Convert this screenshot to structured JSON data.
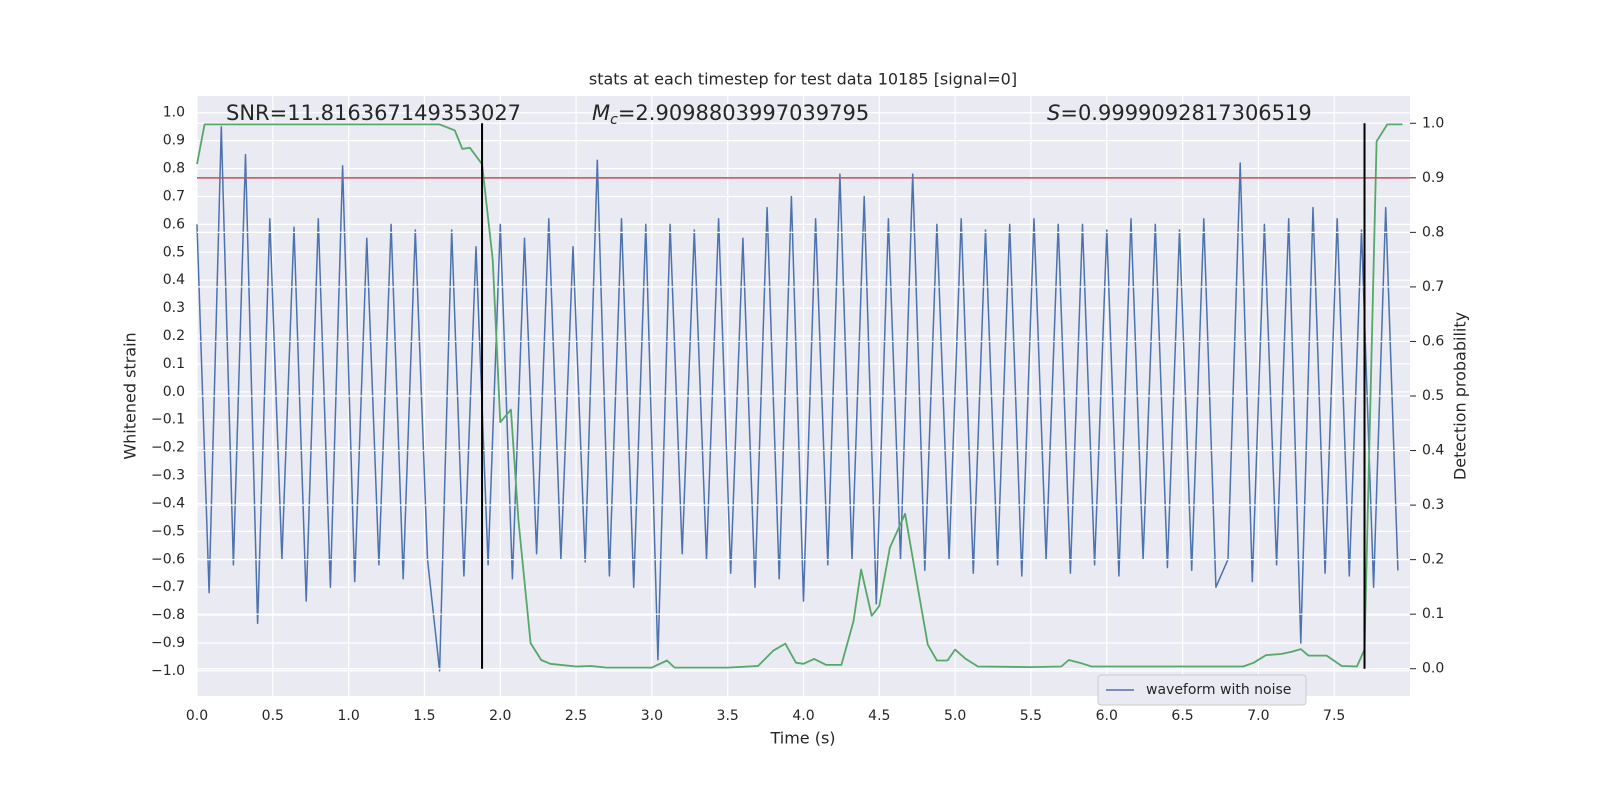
{
  "chart_data": {
    "type": "line",
    "title": "stats at each timestep for test data 10185 [signal=0]",
    "xlabel": "Time (s)",
    "ylabel": "Whitened strain",
    "y2label": "Detection probability",
    "annotations": [
      {
        "text": "SNR=11.816367149353027"
      },
      {
        "symbol": "M",
        "subscript": "c",
        "text": "=2.9098803997039795"
      },
      {
        "symbol": "S",
        "text": "=0.9999092817306519"
      }
    ],
    "xlim": [
      0,
      8.0
    ],
    "ylim": [
      -1.09,
      1.06
    ],
    "y2lim": [
      -0.05,
      1.05
    ],
    "xticks": [
      {
        "value": 0,
        "label": "0.0"
      },
      0.5,
      {
        "value": 1,
        "label": "1.0"
      },
      1.5,
      {
        "value": 2,
        "label": "2.0"
      },
      2.5,
      {
        "value": 3,
        "label": "3.0"
      },
      3.5,
      {
        "value": 4,
        "label": "4.0"
      },
      4.5,
      {
        "value": 5,
        "label": "5.0"
      },
      5.5,
      {
        "value": 6,
        "label": "6.0"
      },
      6.5,
      {
        "value": 7,
        "label": "7.0"
      },
      7.5
    ],
    "yticks": [
      {
        "value": -1,
        "label": "−1.0"
      },
      {
        "value": -0.9,
        "label": "−0.9"
      },
      {
        "value": -0.8,
        "label": "−0.8"
      },
      {
        "value": -0.7,
        "label": "−0.7"
      },
      {
        "value": -0.6,
        "label": "−0.6"
      },
      {
        "value": -0.5,
        "label": "−0.5"
      },
      {
        "value": -0.4,
        "label": "−0.4"
      },
      {
        "value": -0.3,
        "label": "−0.3"
      },
      {
        "value": -0.2,
        "label": "−0.2"
      },
      {
        "value": -0.1,
        "label": "−0.1"
      },
      {
        "value": 0,
        "label": "0.0"
      },
      0.1,
      0.2,
      0.3,
      0.4,
      0.5,
      0.6,
      0.7,
      0.8,
      0.9,
      {
        "value": 1,
        "label": "1.0"
      }
    ],
    "y2ticks": [
      {
        "value": 0,
        "label": "0.0"
      },
      0.1,
      0.2,
      0.3,
      0.4,
      0.5,
      0.6,
      0.7,
      0.8,
      0.9,
      {
        "value": 1,
        "label": "1.0"
      }
    ],
    "grid": true,
    "legend": "lower right",
    "series": [
      {
        "name": "waveform with noise",
        "color": "#4c72b0",
        "x": [
          0,
          0.08,
          0.16,
          0.24,
          0.32,
          0.4,
          0.48,
          0.56,
          0.64,
          0.72,
          0.8,
          0.88,
          0.96,
          1.04,
          1.12,
          1.2,
          1.28,
          1.36,
          1.44,
          1.52,
          1.6,
          1.68,
          1.76,
          1.84,
          1.92,
          2,
          2.08,
          2.16,
          2.24,
          2.32,
          2.4,
          2.48,
          2.56,
          2.64,
          2.72,
          2.8,
          2.88,
          2.96,
          3.04,
          3.12,
          3.2,
          3.28,
          3.36,
          3.44,
          3.52,
          3.6,
          3.68,
          3.76,
          3.84,
          3.92,
          4,
          4.08,
          4.16,
          4.24,
          4.32,
          4.4,
          4.48,
          4.56,
          4.64,
          4.72,
          4.8,
          4.88,
          4.96,
          5.04,
          5.12,
          5.2,
          5.28,
          5.36,
          5.44,
          5.52,
          5.6,
          5.68,
          5.76,
          5.84,
          5.92,
          6,
          6.08,
          6.16,
          6.24,
          6.32,
          6.4,
          6.48,
          6.56,
          6.64,
          6.72,
          6.8,
          6.88,
          6.96,
          7.04,
          7.12,
          7.2,
          7.28,
          7.36,
          7.44,
          7.52,
          7.6,
          7.68,
          7.76,
          7.84,
          7.92
        ],
        "values": [
          0.6,
          -0.72,
          0.95,
          -0.62,
          0.85,
          -0.83,
          0.62,
          -0.6,
          0.59,
          -0.75,
          0.62,
          -0.7,
          0.81,
          -0.68,
          0.55,
          -0.62,
          0.6,
          -0.67,
          0.58,
          -0.6,
          -1.0,
          0.58,
          -0.66,
          0.52,
          -0.62,
          0.6,
          -0.67,
          0.55,
          -0.58,
          0.62,
          -0.6,
          0.52,
          -0.61,
          0.83,
          -0.66,
          0.62,
          -0.7,
          0.6,
          -0.96,
          0.6,
          -0.58,
          0.58,
          -0.6,
          0.62,
          -0.65,
          0.55,
          -0.7,
          0.66,
          -0.67,
          0.7,
          -0.75,
          0.62,
          -0.62,
          0.78,
          -0.6,
          0.7,
          -0.76,
          0.62,
          -0.6,
          0.78,
          -0.64,
          0.6,
          -0.6,
          0.62,
          -0.65,
          0.58,
          -0.62,
          0.6,
          -0.66,
          0.62,
          -0.6,
          0.6,
          -0.65,
          0.6,
          -0.62,
          0.58,
          -0.66,
          0.62,
          -0.6,
          0.6,
          -0.63,
          0.58,
          -0.64,
          0.62,
          -0.7,
          -0.6,
          0.82,
          -0.68,
          0.6,
          -0.62,
          0.62,
          -0.9,
          0.66,
          -0.65,
          0.62,
          -0.66,
          0.58,
          -0.7,
          0.66,
          -0.64
        ]
      },
      {
        "color": "#55a868",
        "axis": "y2",
        "x": [
          0,
          0.05,
          1.6,
          1.7,
          1.75,
          1.8,
          1.88,
          1.95,
          2.0,
          2.07,
          2.12,
          2.2,
          2.27,
          2.33,
          2.5,
          2.6,
          2.7,
          3.0,
          3.1,
          3.15,
          3.5,
          3.7,
          3.8,
          3.88,
          3.95,
          4.0,
          4.07,
          4.15,
          4.25,
          4.33,
          4.38,
          4.45,
          4.5,
          4.57,
          4.67,
          4.75,
          4.82,
          4.88,
          4.95,
          5.0,
          5.07,
          5.15,
          5.5,
          5.7,
          5.75,
          5.82,
          5.9,
          6.5,
          6.9,
          6.97,
          7.05,
          7.15,
          7.22,
          7.28,
          7.33,
          7.45,
          7.55,
          7.65,
          7.7,
          7.78,
          7.85,
          7.95
        ],
        "values": [
          0.925,
          0.998,
          0.998,
          0.987,
          0.953,
          0.955,
          0.925,
          0.75,
          0.452,
          0.475,
          0.273,
          0.047,
          0.016,
          0.009,
          0.004,
          0.005,
          0.002,
          0.002,
          0.015,
          0.002,
          0.002,
          0.005,
          0.033,
          0.046,
          0.011,
          0.009,
          0.018,
          0.007,
          0.007,
          0.087,
          0.182,
          0.097,
          0.115,
          0.222,
          0.284,
          0.155,
          0.044,
          0.015,
          0.015,
          0.035,
          0.018,
          0.004,
          0.003,
          0.004,
          0.016,
          0.011,
          0.004,
          0.004,
          0.004,
          0.011,
          0.025,
          0.027,
          0.031,
          0.036,
          0.024,
          0.024,
          0.005,
          0.004,
          0.035,
          0.967,
          0.998,
          0.998
        ]
      }
    ],
    "threshold": {
      "value": 0.9,
      "axis": "y2",
      "color": "#c44e52"
    },
    "vlines": {
      "x": [
        1.88,
        7.7
      ],
      "range": [
        0,
        1
      ],
      "axis": "y2",
      "color": "#000000"
    }
  }
}
